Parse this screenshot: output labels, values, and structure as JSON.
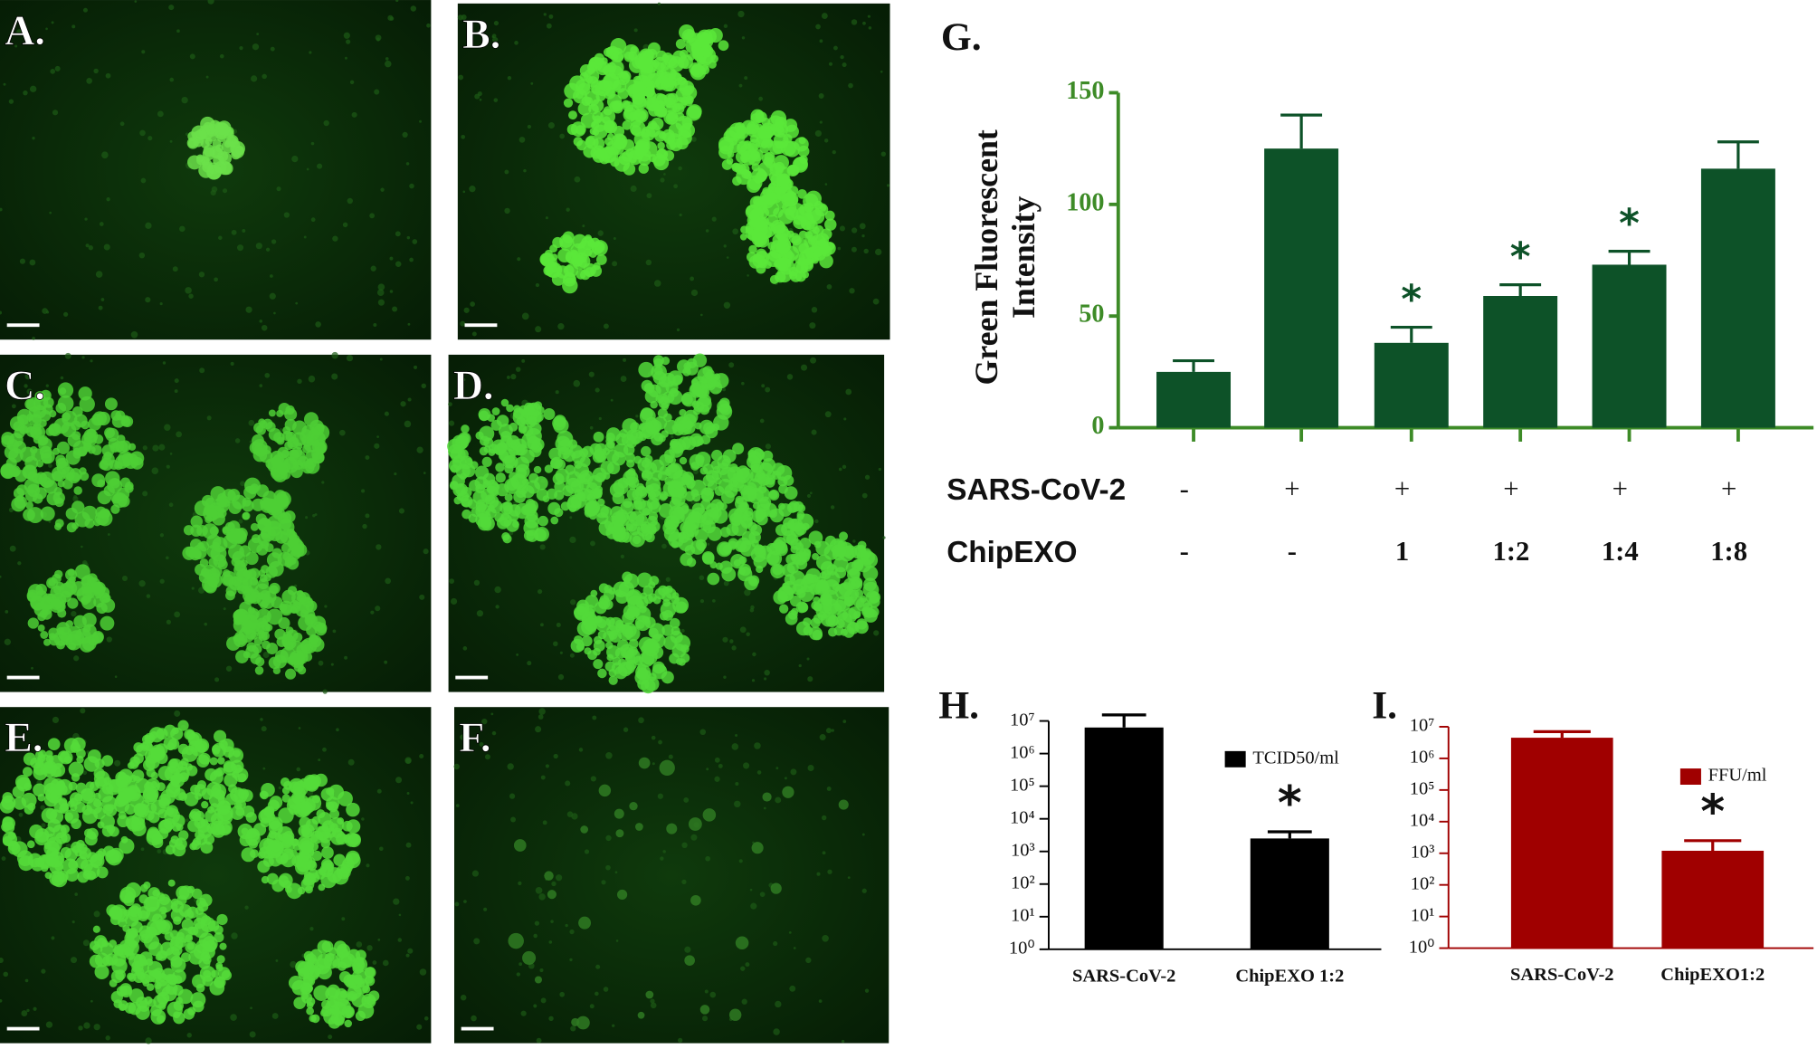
{
  "panels": [
    {
      "label": "A."
    },
    {
      "label": "B."
    },
    {
      "label": "C."
    },
    {
      "label": "D."
    },
    {
      "label": "E."
    },
    {
      "label": "F."
    }
  ],
  "chart_data": [
    {
      "type": "bar",
      "panel_label": "G.",
      "y_label": [
        "Green Fluorescent",
        "Intensity"
      ],
      "values": [
        25,
        125,
        38,
        59,
        73,
        116
      ],
      "errors": [
        5,
        15,
        7,
        5,
        6,
        12
      ],
      "markers": [
        null,
        null,
        "*",
        "*",
        "*",
        null
      ],
      "conditions": [
        {
          "name": "SARS-CoV-2",
          "values": [
            "-",
            "+",
            "+",
            "+",
            "+",
            "+"
          ]
        },
        {
          "name": "ChipEXO",
          "values": [
            "-",
            "-",
            "1",
            "1:2",
            "1:4",
            "1:8"
          ]
        }
      ],
      "color": "#0d5228",
      "axis_color": "#3d8b27",
      "ylim": [
        0,
        150
      ],
      "yticks": [
        0,
        50,
        100,
        150
      ]
    },
    {
      "type": "bar",
      "panel_label": "H.",
      "log": true,
      "legend": "TCID50/ml",
      "categories": [
        "SARS-CoV-2",
        "ChipEXO 1:2"
      ],
      "values": [
        6300000,
        2500
      ],
      "errors": [
        9000000,
        1500
      ],
      "markers": [
        null,
        "*"
      ],
      "color": "#000000",
      "axis_color": "#000000",
      "ylim": [
        1,
        10000000
      ],
      "yticks": [
        {
          "value": 1,
          "label": "10⁰"
        },
        {
          "value": 10,
          "label": "10¹"
        },
        {
          "value": 100,
          "label": "10²"
        },
        {
          "value": 1000,
          "label": "10³"
        },
        {
          "value": 10000,
          "label": "10⁴"
        },
        {
          "value": 100000,
          "label": "10⁵"
        },
        {
          "value": 1000000,
          "label": "10⁶"
        },
        {
          "value": 10000000,
          "label": "10⁷"
        }
      ]
    },
    {
      "type": "bar",
      "panel_label": "I.",
      "log": true,
      "legend": "FFU/ml",
      "categories": [
        "SARS-CoV-2",
        "ChipEXO1:2"
      ],
      "values": [
        4500000,
        1200
      ],
      "errors": [
        2500000,
        1300
      ],
      "markers": [
        null,
        "*"
      ],
      "color": "#a00000",
      "axis_color": "#a00000",
      "ylim": [
        1,
        10000000
      ],
      "yticks": [
        {
          "value": 1,
          "label": "10⁰"
        },
        {
          "value": 10,
          "label": "10¹"
        },
        {
          "value": 100,
          "label": "10²"
        },
        {
          "value": 1000,
          "label": "10³"
        },
        {
          "value": 10000,
          "label": "10⁴"
        },
        {
          "value": 100000,
          "label": "10⁵"
        },
        {
          "value": 1000000,
          "label": "10⁶"
        },
        {
          "value": 10000000,
          "label": "10⁷"
        }
      ]
    }
  ]
}
